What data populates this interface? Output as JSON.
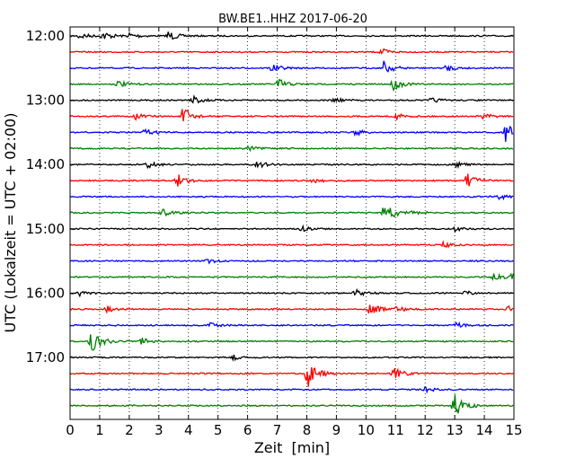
{
  "chart_data": {
    "type": "line",
    "title": "BW.BE1..HHZ 2017-06-20",
    "xlabel": "Zeit  [min]",
    "ylabel": "UTC (Lokalzeit = UTC + 02:00)",
    "xlim": [
      0,
      15
    ],
    "x_ticks": [
      "0",
      "1",
      "2",
      "3",
      "4",
      "5",
      "6",
      "7",
      "8",
      "9",
      "10",
      "11",
      "12",
      "13",
      "14",
      "15"
    ],
    "y_ticks": [
      "12:00",
      "13:00",
      "14:00",
      "15:00",
      "16:00",
      "17:00"
    ],
    "grid": "vertical dotted",
    "trace_interval_min": 15,
    "trace_colors": [
      "#000000",
      "#ff0000",
      "#0000ff",
      "#008000"
    ],
    "traces": [
      {
        "start": "12:00",
        "events": [
          {
            "t": 0.3,
            "a": 4
          },
          {
            "t": 1.1,
            "a": 5
          },
          {
            "t": 2.0,
            "a": 4
          },
          {
            "t": 3.3,
            "a": 6
          }
        ]
      },
      {
        "start": "12:15",
        "events": [
          {
            "t": 10.5,
            "a": 4
          }
        ]
      },
      {
        "start": "12:30",
        "events": [
          {
            "t": 6.8,
            "a": 5
          },
          {
            "t": 10.6,
            "a": 8
          },
          {
            "t": 12.7,
            "a": 4
          }
        ]
      },
      {
        "start": "12:45",
        "events": [
          {
            "t": 1.6,
            "a": 4
          },
          {
            "t": 7.0,
            "a": 7
          },
          {
            "t": 10.9,
            "a": 7
          }
        ]
      },
      {
        "start": "13:00",
        "events": [
          {
            "t": 4.1,
            "a": 6
          },
          {
            "t": 8.9,
            "a": 3
          },
          {
            "t": 12.2,
            "a": 3
          }
        ]
      },
      {
        "start": "13:15",
        "events": [
          {
            "t": 2.2,
            "a": 4
          },
          {
            "t": 3.8,
            "a": 11
          },
          {
            "t": 11.0,
            "a": 4
          },
          {
            "t": 13.9,
            "a": 4
          }
        ]
      },
      {
        "start": "13:30",
        "events": [
          {
            "t": 2.5,
            "a": 4
          },
          {
            "t": 9.6,
            "a": 4
          },
          {
            "t": 14.7,
            "a": 11
          }
        ]
      },
      {
        "start": "13:45",
        "events": [
          {
            "t": 6.0,
            "a": 3
          }
        ]
      },
      {
        "start": "14:00",
        "events": [
          {
            "t": 2.6,
            "a": 4
          },
          {
            "t": 6.3,
            "a": 4
          },
          {
            "t": 13.0,
            "a": 3
          }
        ]
      },
      {
        "start": "14:15",
        "events": [
          {
            "t": 3.6,
            "a": 8
          },
          {
            "t": 8.2,
            "a": 3
          },
          {
            "t": 13.4,
            "a": 9
          }
        ]
      },
      {
        "start": "14:30",
        "events": [
          {
            "t": 14.5,
            "a": 3
          }
        ]
      },
      {
        "start": "14:45",
        "events": [
          {
            "t": 3.1,
            "a": 4
          },
          {
            "t": 10.6,
            "a": 14
          },
          {
            "t": 11.6,
            "a": 3
          }
        ]
      },
      {
        "start": "15:00",
        "events": [
          {
            "t": 7.8,
            "a": 3
          },
          {
            "t": 13.0,
            "a": 3
          }
        ]
      },
      {
        "start": "15:15",
        "events": [
          {
            "t": 12.6,
            "a": 3
          }
        ]
      },
      {
        "start": "15:30",
        "events": [
          {
            "t": 4.6,
            "a": 3
          }
        ]
      },
      {
        "start": "15:45",
        "events": [
          {
            "t": 14.3,
            "a": 4
          },
          {
            "t": 14.95,
            "a": 9
          }
        ]
      },
      {
        "start": "16:00",
        "events": [
          {
            "t": 0.3,
            "a": 3
          },
          {
            "t": 9.6,
            "a": 5
          },
          {
            "t": 13.3,
            "a": 3
          }
        ]
      },
      {
        "start": "16:15",
        "events": [
          {
            "t": 1.2,
            "a": 4
          },
          {
            "t": 10.1,
            "a": 8
          },
          {
            "t": 11.0,
            "a": 4
          },
          {
            "t": 14.8,
            "a": 5
          }
        ]
      },
      {
        "start": "16:30",
        "events": [
          {
            "t": 4.7,
            "a": 3
          },
          {
            "t": 13.0,
            "a": 3
          }
        ]
      },
      {
        "start": "16:45",
        "events": [
          {
            "t": 0.7,
            "a": 16
          },
          {
            "t": 2.4,
            "a": 4
          }
        ]
      },
      {
        "start": "17:00",
        "events": [
          {
            "t": 5.5,
            "a": 3
          }
        ]
      },
      {
        "start": "17:15",
        "events": [
          {
            "t": 8.0,
            "a": 18
          },
          {
            "t": 10.9,
            "a": 8
          }
        ]
      },
      {
        "start": "17:30",
        "events": [
          {
            "t": 12.0,
            "a": 3
          }
        ]
      },
      {
        "start": "17:45",
        "events": [
          {
            "t": 12.95,
            "a": 15
          }
        ]
      }
    ]
  }
}
